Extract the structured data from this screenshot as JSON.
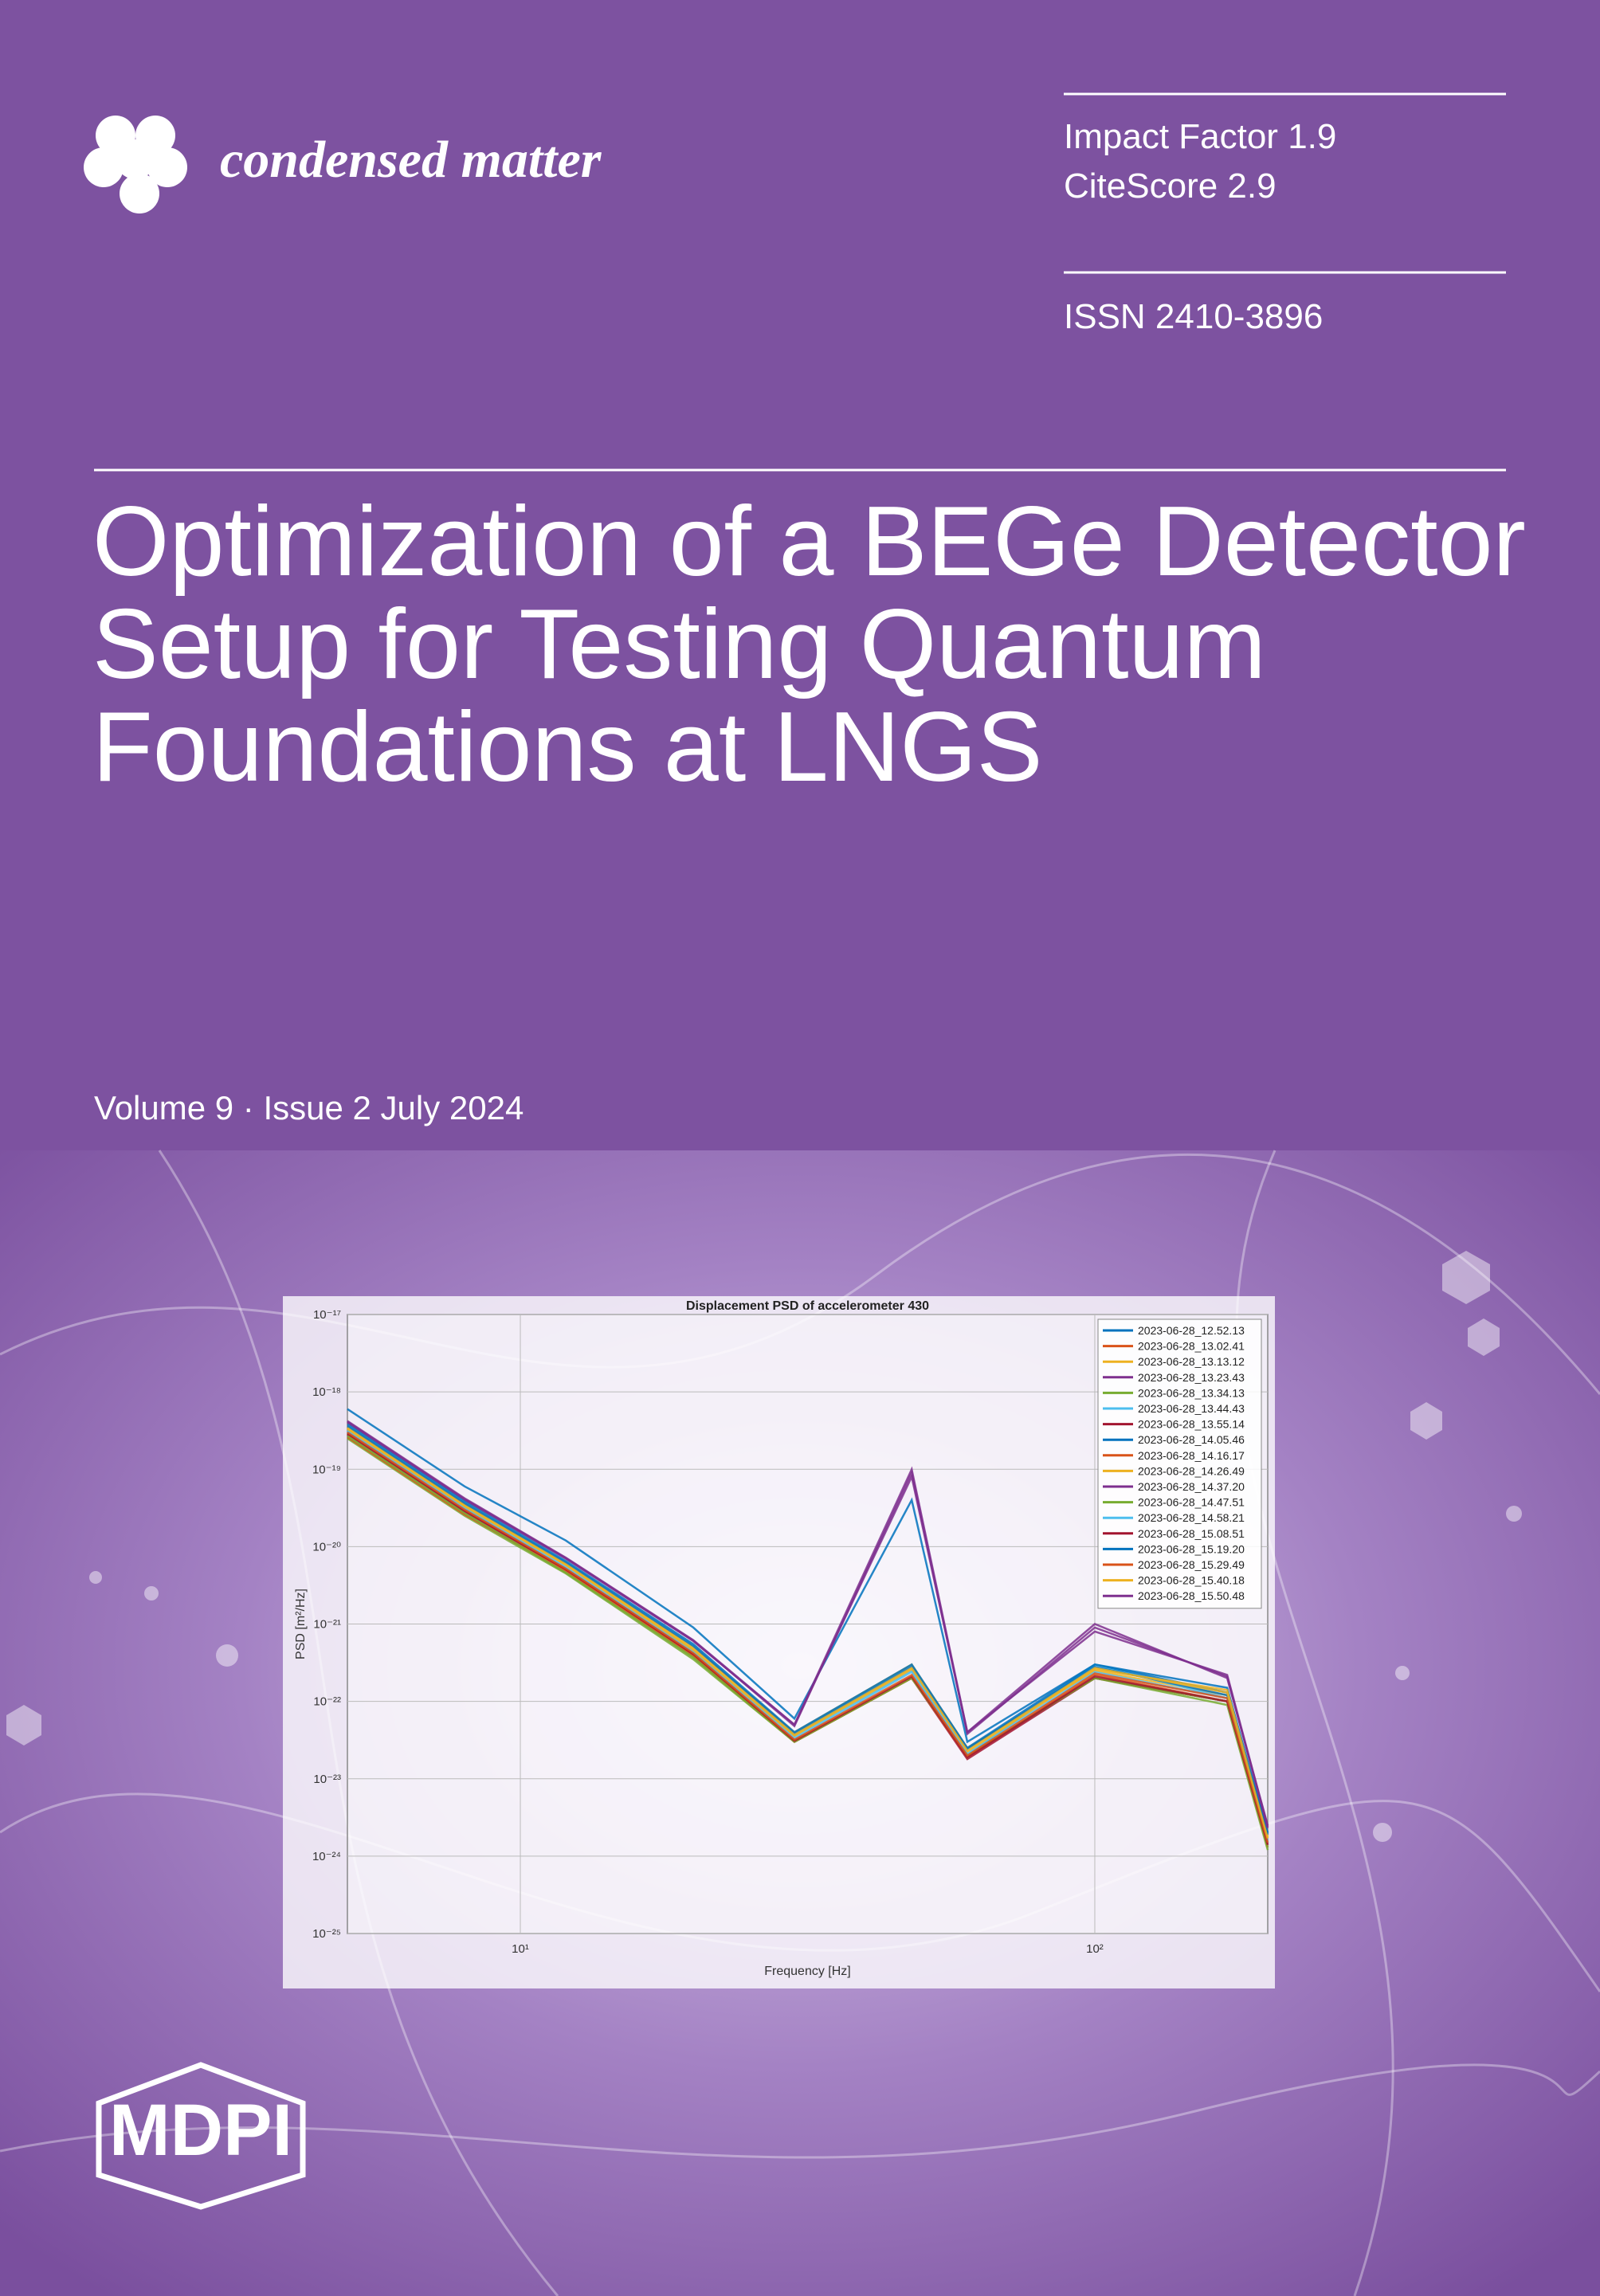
{
  "header": {
    "journal": "condensed matter",
    "impact_factor": "Impact Factor 1.9",
    "citescore": "CiteScore 2.9",
    "issn": "ISSN 2410-3896"
  },
  "title": [
    "Optimization of a BEGe Detector",
    "Setup for Testing Quantum",
    "Foundations at LNGS"
  ],
  "issue": "Volume 9 · Issue 2 July 2024",
  "publisher": "MDPI",
  "chart_data": {
    "type": "line",
    "title": "Displacement PSD of accelerometer 430",
    "x_label": "Frequency [Hz]",
    "y_label": "PSD [m²/Hz]",
    "x": [
      5,
      8,
      12,
      20,
      30,
      48,
      60,
      100,
      170,
      200
    ],
    "xlim": [
      5,
      200
    ],
    "ylim": [
      1e-25,
      1e-17
    ],
    "x_log": true,
    "y_log": true,
    "grid": true,
    "legend": "top-right",
    "xticks": [
      {
        "value": 10,
        "label": "10¹"
      },
      {
        "value": 100,
        "label": "10²"
      }
    ],
    "yticks": [
      {
        "value": 1e-25,
        "label": "10⁻²⁵"
      },
      {
        "value": 1e-24,
        "label": "10⁻²⁴"
      },
      {
        "value": 1e-23,
        "label": "10⁻²³"
      },
      {
        "value": 1e-22,
        "label": "10⁻²²"
      },
      {
        "value": 1e-21,
        "label": "10⁻²¹"
      },
      {
        "value": 1e-20,
        "label": "10⁻²⁰"
      },
      {
        "value": 1e-19,
        "label": "10⁻¹⁹"
      },
      {
        "value": 1e-18,
        "label": "10⁻¹⁸"
      },
      {
        "value": 1e-17,
        "label": "10⁻¹⁷"
      }
    ],
    "series": [
      {
        "name": "2023-06-28_12.52.13",
        "color": "#0072bd",
        "values": [
          6e-19,
          6e-20,
          1.2e-20,
          9e-22,
          6e-23,
          4e-20,
          3e-23,
          3e-22,
          1.5e-22,
          2e-24
        ]
      },
      {
        "name": "2023-06-28_13.02.41",
        "color": "#d95319",
        "values": [
          3e-19,
          3e-20,
          5e-21,
          4e-22,
          3e-23,
          2e-22,
          2e-23,
          2e-22,
          1e-22,
          1.5e-24
        ]
      },
      {
        "name": "2023-06-28_13.13.12",
        "color": "#edb120",
        "values": [
          3.5e-19,
          3.5e-20,
          6e-21,
          5e-22,
          4e-23,
          3e-22,
          2.5e-23,
          2.5e-22,
          1.2e-22,
          1.8e-24
        ]
      },
      {
        "name": "2023-06-28_13.23.43",
        "color": "#7e2f8e",
        "values": [
          4e-19,
          4e-20,
          7e-21,
          6e-22,
          5e-23,
          1e-19,
          4e-23,
          1e-21,
          2e-22,
          2.5e-24
        ]
      },
      {
        "name": "2023-06-28_13.34.13",
        "color": "#77ac30",
        "values": [
          2.5e-19,
          2.5e-20,
          4.5e-21,
          3.5e-22,
          3e-23,
          2e-22,
          2e-23,
          2e-22,
          9e-23,
          1.2e-24
        ]
      },
      {
        "name": "2023-06-28_13.44.43",
        "color": "#4dbeee",
        "values": [
          3.2e-19,
          3.2e-20,
          5.5e-21,
          4.5e-22,
          3.5e-23,
          2.5e-22,
          2e-23,
          3e-22,
          1.1e-22,
          1.6e-24
        ]
      },
      {
        "name": "2023-06-28_13.55.14",
        "color": "#a2142f",
        "values": [
          2.8e-19,
          2.8e-20,
          5e-21,
          4e-22,
          3e-23,
          2e-22,
          1.8e-23,
          2e-22,
          1e-22,
          1.4e-24
        ]
      },
      {
        "name": "2023-06-28_14.05.46",
        "color": "#0072bd",
        "values": [
          3.8e-19,
          3.8e-20,
          6.5e-21,
          5.5e-22,
          4e-23,
          3e-22,
          2.5e-23,
          3e-22,
          1.3e-22,
          2e-24
        ]
      },
      {
        "name": "2023-06-28_14.16.17",
        "color": "#d95319",
        "values": [
          2.6e-19,
          2.6e-20,
          4.8e-21,
          3.8e-22,
          3e-23,
          2e-22,
          1.9e-23,
          2.2e-22,
          1e-22,
          1.3e-24
        ]
      },
      {
        "name": "2023-06-28_14.26.49",
        "color": "#edb120",
        "values": [
          3.3e-19,
          3.3e-20,
          5.8e-21,
          4.6e-22,
          3.6e-23,
          2.6e-22,
          2.2e-23,
          2.6e-22,
          1.4e-22,
          1.7e-24
        ]
      },
      {
        "name": "2023-06-28_14.37.20",
        "color": "#7e2f8e",
        "values": [
          4.2e-19,
          4.2e-20,
          7.2e-21,
          6.2e-22,
          5e-23,
          8e-20,
          4e-23,
          8e-22,
          2.2e-22,
          2.4e-24
        ]
      },
      {
        "name": "2023-06-28_14.47.51",
        "color": "#77ac30",
        "values": [
          2.7e-19,
          2.7e-20,
          4.6e-21,
          3.7e-22,
          3e-23,
          2e-22,
          2e-23,
          2e-22,
          1e-22,
          1.3e-24
        ]
      },
      {
        "name": "2023-06-28_14.58.21",
        "color": "#4dbeee",
        "values": [
          3.1e-19,
          3.1e-20,
          5.3e-21,
          4.3e-22,
          3.3e-23,
          2.4e-22,
          2.1e-23,
          2.4e-22,
          1.1e-22,
          1.5e-24
        ]
      },
      {
        "name": "2023-06-28_15.08.51",
        "color": "#a2142f",
        "values": [
          2.9e-19,
          2.9e-20,
          5.1e-21,
          4.1e-22,
          3.1e-23,
          2.1e-22,
          1.9e-23,
          2.1e-22,
          1e-22,
          1.4e-24
        ]
      },
      {
        "name": "2023-06-28_15.19.20",
        "color": "#0072bd",
        "values": [
          3.6e-19,
          3.6e-20,
          6.2e-21,
          5.2e-22,
          3.8e-23,
          2.8e-22,
          2.4e-23,
          2.8e-22,
          1.2e-22,
          1.9e-24
        ]
      },
      {
        "name": "2023-06-28_15.29.49",
        "color": "#d95319",
        "values": [
          3e-19,
          3e-20,
          5.2e-21,
          4.2e-22,
          3.2e-23,
          2.2e-22,
          2e-23,
          2.3e-22,
          1.1e-22,
          1.5e-24
        ]
      },
      {
        "name": "2023-06-28_15.40.18",
        "color": "#edb120",
        "values": [
          3.4e-19,
          3.4e-20,
          5.9e-21,
          4.8e-22,
          3.7e-23,
          2.7e-22,
          2.3e-23,
          2.7e-22,
          1.3e-22,
          1.7e-24
        ]
      },
      {
        "name": "2023-06-28_15.50.48",
        "color": "#7e2f8e",
        "values": [
          4.1e-19,
          4.1e-20,
          7.1e-21,
          6.1e-22,
          4.8e-23,
          9e-20,
          3.8e-23,
          9e-22,
          2.1e-22,
          2.3e-24
        ]
      }
    ]
  }
}
